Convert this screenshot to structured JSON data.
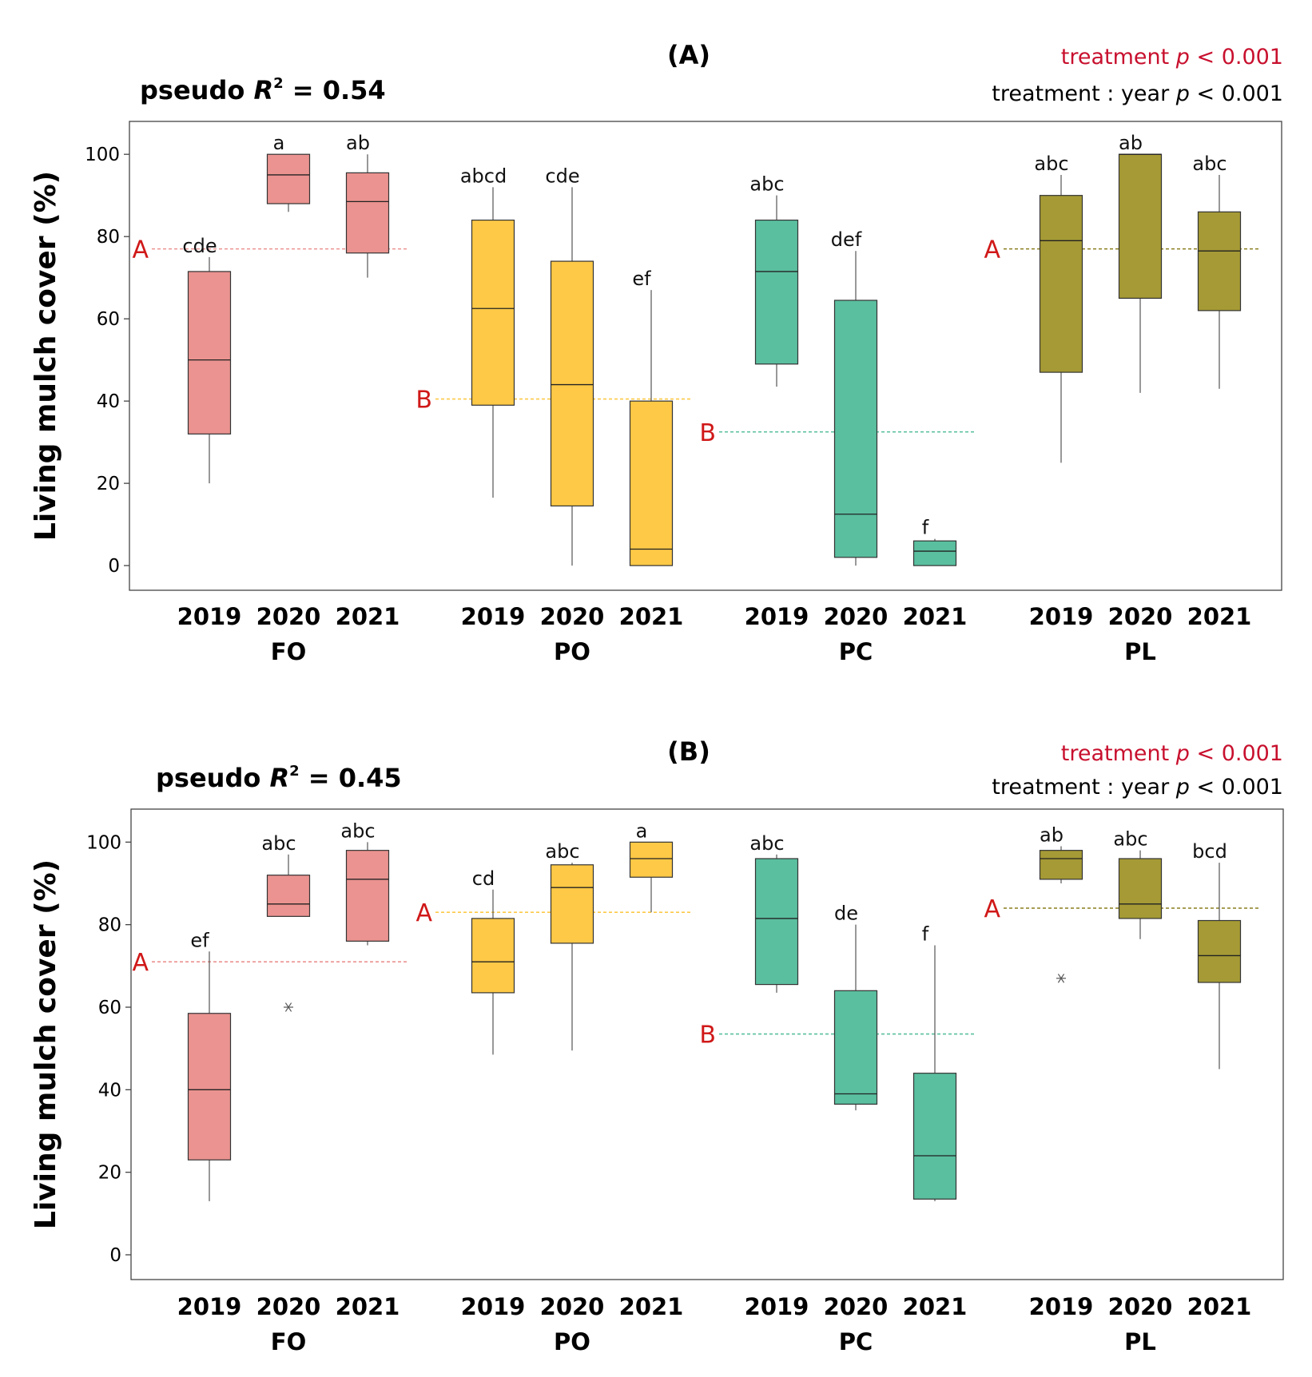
{
  "chart_data": [
    {
      "type": "box",
      "panel": "(A)",
      "pseudo_r2_prefix": "pseudo ",
      "pseudo_r2_symbol": "R",
      "pseudo_r2_superscript": "2",
      "pseudo_r2_value": " = 0.54",
      "stat_line_1": {
        "term": "treatment",
        "p_symbol": "p",
        "p_value": "< 0.001"
      },
      "stat_line_2": {
        "term": "treatment : year",
        "p_symbol": "p",
        "p_value": "< 0.001"
      },
      "ylabel": "Living mulch cover (%)",
      "ylim": [
        -6,
        108
      ],
      "yticks": [
        "0",
        "20",
        "40",
        "60",
        "80",
        "100"
      ],
      "groups": [
        {
          "name": "FO",
          "color": "#eb9390",
          "mean": 77,
          "mean_letter": "A",
          "mean_letter_side": "left",
          "boxes": [
            {
              "year": "2019",
              "whisker_low": 20,
              "q1": 32,
              "median": 50,
              "q3": 71.5,
              "whisker_high": 75,
              "letter": "cde",
              "outliers": []
            },
            {
              "year": "2020",
              "whisker_low": 86,
              "q1": 88,
              "median": 95,
              "q3": 100,
              "whisker_high": 100,
              "letter": "a",
              "outliers": []
            },
            {
              "year": "2021",
              "whisker_low": 70,
              "q1": 76,
              "median": 88.5,
              "q3": 95.5,
              "whisker_high": 100,
              "letter": "ab",
              "outliers": []
            }
          ]
        },
        {
          "name": "PO",
          "color": "#fdc947",
          "mean": 40.5,
          "mean_letter": "B",
          "mean_letter_side": "left",
          "boxes": [
            {
              "year": "2019",
              "whisker_low": 16.5,
              "q1": 39,
              "median": 62.5,
              "q3": 84,
              "whisker_high": 92,
              "letter": "abcd",
              "outliers": []
            },
            {
              "year": "2020",
              "whisker_low": 0,
              "q1": 14.5,
              "median": 44,
              "q3": 74,
              "whisker_high": 92,
              "letter": "cde",
              "outliers": []
            },
            {
              "year": "2021",
              "whisker_low": 0,
              "q1": 0,
              "median": 4,
              "q3": 40,
              "whisker_high": 67,
              "letter": "ef",
              "outliers": []
            }
          ]
        },
        {
          "name": "PC",
          "color": "#5abf9f",
          "mean": 32.5,
          "mean_letter": "B",
          "mean_letter_side": "left",
          "boxes": [
            {
              "year": "2019",
              "whisker_low": 43.5,
              "q1": 49,
              "median": 71.5,
              "q3": 84,
              "whisker_high": 90,
              "letter": "abc",
              "outliers": []
            },
            {
              "year": "2020",
              "whisker_low": 0,
              "q1": 2,
              "median": 12.5,
              "q3": 64.5,
              "whisker_high": 76.5,
              "letter": "def",
              "outliers": []
            },
            {
              "year": "2021",
              "whisker_low": 0,
              "q1": 0,
              "median": 3.5,
              "q3": 6,
              "whisker_high": 6.5,
              "letter": "f",
              "outliers": []
            }
          ]
        },
        {
          "name": "PL",
          "color": "#a59a35",
          "mean": 77,
          "mean_letter": "A",
          "mean_letter_side": "left",
          "boxes": [
            {
              "year": "2019",
              "whisker_low": 25,
              "q1": 47,
              "median": 79,
              "q3": 90,
              "whisker_high": 95,
              "letter": "abc",
              "outliers": []
            },
            {
              "year": "2020",
              "whisker_low": 42,
              "q1": 65,
              "median": 100,
              "q3": 100,
              "whisker_high": 100,
              "letter": "ab",
              "outliers": []
            },
            {
              "year": "2021",
              "whisker_low": 43,
              "q1": 62,
              "median": 76.5,
              "q3": 86,
              "whisker_high": 95,
              "letter": "abc",
              "outliers": []
            }
          ]
        }
      ]
    },
    {
      "type": "box",
      "panel": "(B)",
      "pseudo_r2_prefix": "pseudo ",
      "pseudo_r2_symbol": "R",
      "pseudo_r2_superscript": "2",
      "pseudo_r2_value": " = 0.45",
      "stat_line_1": {
        "term": "treatment",
        "p_symbol": "p",
        "p_value": "< 0.001"
      },
      "stat_line_2": {
        "term": "treatment : year",
        "p_symbol": "p",
        "p_value": "< 0.001"
      },
      "ylabel": "Living mulch cover (%)",
      "ylim": [
        -6,
        108
      ],
      "yticks": [
        "0",
        "20",
        "40",
        "60",
        "80",
        "100"
      ],
      "groups": [
        {
          "name": "FO",
          "color": "#eb9390",
          "mean": 71,
          "mean_letter": "A",
          "mean_letter_side": "left",
          "boxes": [
            {
              "year": "2019",
              "whisker_low": 13,
              "q1": 23,
              "median": 40,
              "q3": 58.5,
              "whisker_high": 73.5,
              "letter": "ef",
              "outliers": []
            },
            {
              "year": "2020",
              "whisker_low": 82,
              "q1": 82,
              "median": 85,
              "q3": 92,
              "whisker_high": 97,
              "letter": "abc",
              "outliers": [
                60
              ]
            },
            {
              "year": "2021",
              "whisker_low": 75,
              "q1": 76,
              "median": 91,
              "q3": 98,
              "whisker_high": 100,
              "letter": "abc",
              "outliers": []
            }
          ]
        },
        {
          "name": "PO",
          "color": "#fdc947",
          "mean": 83,
          "mean_letter": "A",
          "mean_letter_side": "left",
          "boxes": [
            {
              "year": "2019",
              "whisker_low": 48.5,
              "q1": 63.5,
              "median": 71,
              "q3": 81.5,
              "whisker_high": 88.5,
              "letter": "cd",
              "outliers": []
            },
            {
              "year": "2020",
              "whisker_low": 49.5,
              "q1": 75.5,
              "median": 89,
              "q3": 94.5,
              "whisker_high": 95,
              "letter": "abc",
              "outliers": []
            },
            {
              "year": "2021",
              "whisker_low": 83,
              "q1": 91.5,
              "median": 96,
              "q3": 100,
              "whisker_high": 100,
              "letter": "a",
              "outliers": []
            }
          ]
        },
        {
          "name": "PC",
          "color": "#5abf9f",
          "mean": 53.5,
          "mean_letter": "B",
          "mean_letter_side": "left",
          "boxes": [
            {
              "year": "2019",
              "whisker_low": 63.5,
              "q1": 65.5,
              "median": 81.5,
              "q3": 96,
              "whisker_high": 97,
              "letter": "abc",
              "outliers": []
            },
            {
              "year": "2020",
              "whisker_low": 35,
              "q1": 36.5,
              "median": 39,
              "q3": 64,
              "whisker_high": 80,
              "letter": "de",
              "outliers": []
            },
            {
              "year": "2021",
              "whisker_low": 13,
              "q1": 13.5,
              "median": 24,
              "q3": 44,
              "whisker_high": 75,
              "letter": "f",
              "outliers": []
            }
          ]
        },
        {
          "name": "PL",
          "color": "#a59a35",
          "mean": 84,
          "mean_letter": "A",
          "mean_letter_side": "left",
          "boxes": [
            {
              "year": "2019",
              "whisker_low": 90,
              "q1": 91,
              "median": 96,
              "q3": 98,
              "whisker_high": 99,
              "letter": "ab",
              "outliers": [
                67
              ]
            },
            {
              "year": "2020",
              "whisker_low": 76.5,
              "q1": 81.5,
              "median": 85,
              "q3": 96,
              "whisker_high": 98,
              "letter": "abc",
              "outliers": []
            },
            {
              "year": "2021",
              "whisker_low": 45,
              "q1": 66,
              "median": 72.5,
              "q3": 81,
              "whisker_high": 95,
              "letter": "bcd",
              "outliers": []
            }
          ]
        }
      ]
    }
  ]
}
